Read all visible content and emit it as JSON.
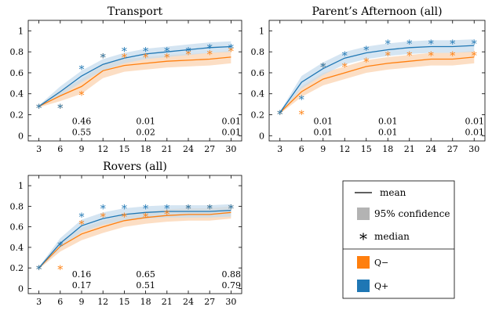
{
  "colors": {
    "q_minus": "#ff7f0e",
    "q_plus": "#1f77b4",
    "q_minus_band": "#fbd3b0",
    "q_plus_band": "#c7dced",
    "confidence_swatch": "#b3b3b3",
    "axis": "#000000"
  },
  "legend": {
    "mean": "mean",
    "confidence": "95% confidence",
    "median": "median",
    "q_minus": "Q−",
    "q_plus": "Q+",
    "median_glyph": "*"
  },
  "chart_data": [
    {
      "type": "line",
      "title": "Transport",
      "x": [
        3,
        6,
        9,
        12,
        15,
        18,
        21,
        24,
        27,
        30
      ],
      "ylim": [
        0,
        1.1
      ],
      "yticks": [
        0,
        0.2,
        0.4,
        0.6,
        0.8,
        1
      ],
      "grid": false,
      "series": [
        {
          "name": "Q−",
          "mean": [
            0.28,
            0.38,
            0.47,
            0.62,
            0.67,
            0.69,
            0.71,
            0.72,
            0.73,
            0.75
          ],
          "ci_low": [
            0.27,
            0.33,
            0.4,
            0.55,
            0.61,
            0.63,
            0.65,
            0.66,
            0.67,
            0.69
          ],
          "ci_high": [
            0.29,
            0.43,
            0.54,
            0.68,
            0.73,
            0.75,
            0.77,
            0.78,
            0.79,
            0.81
          ],
          "median": [
            0.28,
            0.28,
            0.4,
            0.76,
            0.76,
            0.76,
            0.76,
            0.79,
            0.79,
            0.82
          ]
        },
        {
          "name": "Q+",
          "mean": [
            0.28,
            0.42,
            0.57,
            0.68,
            0.74,
            0.78,
            0.8,
            0.82,
            0.84,
            0.85
          ],
          "ci_low": [
            0.27,
            0.38,
            0.51,
            0.62,
            0.69,
            0.73,
            0.75,
            0.77,
            0.79,
            0.8
          ],
          "ci_high": [
            0.29,
            0.47,
            0.62,
            0.73,
            0.79,
            0.83,
            0.85,
            0.87,
            0.89,
            0.9
          ],
          "median": [
            0.28,
            0.28,
            0.65,
            0.76,
            0.82,
            0.82,
            0.82,
            0.82,
            0.85,
            0.85
          ]
        }
      ],
      "annotations": [
        {
          "x": 9,
          "top": "0.46",
          "bottom": "0.55"
        },
        {
          "x": 18,
          "top": "0.01",
          "bottom": "0.02"
        },
        {
          "x": 30,
          "top": "0.01",
          "bottom": "0.01"
        }
      ]
    },
    {
      "type": "line",
      "title": "Parent’s Afternoon (all)",
      "x": [
        3,
        6,
        9,
        12,
        15,
        18,
        21,
        24,
        27,
        30
      ],
      "ylim": [
        0,
        1.1
      ],
      "yticks": [
        0,
        0.2,
        0.4,
        0.6,
        0.8,
        1
      ],
      "grid": false,
      "series": [
        {
          "name": "Q−",
          "mean": [
            0.22,
            0.42,
            0.54,
            0.6,
            0.66,
            0.69,
            0.71,
            0.73,
            0.73,
            0.75
          ],
          "ci_low": [
            0.21,
            0.37,
            0.48,
            0.54,
            0.6,
            0.63,
            0.65,
            0.67,
            0.67,
            0.69
          ],
          "ci_high": [
            0.23,
            0.47,
            0.6,
            0.66,
            0.72,
            0.75,
            0.77,
            0.79,
            0.79,
            0.81
          ],
          "median": [
            0.22,
            0.22,
            0.67,
            0.67,
            0.72,
            0.78,
            0.78,
            0.78,
            0.78,
            0.78
          ]
        },
        {
          "name": "Q+",
          "mean": [
            0.22,
            0.51,
            0.64,
            0.74,
            0.79,
            0.82,
            0.84,
            0.85,
            0.85,
            0.86
          ],
          "ci_low": [
            0.21,
            0.45,
            0.58,
            0.68,
            0.73,
            0.76,
            0.78,
            0.79,
            0.79,
            0.8
          ],
          "ci_high": [
            0.23,
            0.57,
            0.7,
            0.8,
            0.85,
            0.88,
            0.9,
            0.91,
            0.91,
            0.92
          ],
          "median": [
            0.22,
            0.36,
            0.67,
            0.78,
            0.83,
            0.89,
            0.89,
            0.89,
            0.89,
            0.89
          ]
        }
      ],
      "annotations": [
        {
          "x": 9,
          "top": "0.01",
          "bottom": "0.01"
        },
        {
          "x": 18,
          "top": "0.01",
          "bottom": "0.01"
        },
        {
          "x": 30,
          "top": "0.01",
          "bottom": "0.01"
        }
      ]
    },
    {
      "type": "line",
      "title": "Rovers (all)",
      "x": [
        3,
        6,
        9,
        12,
        15,
        18,
        21,
        24,
        27,
        30
      ],
      "ylim": [
        0,
        1.1
      ],
      "yticks": [
        0,
        0.2,
        0.4,
        0.6,
        0.8,
        1
      ],
      "grid": false,
      "series": [
        {
          "name": "Q−",
          "mean": [
            0.2,
            0.41,
            0.53,
            0.6,
            0.66,
            0.69,
            0.71,
            0.72,
            0.72,
            0.74
          ],
          "ci_low": [
            0.19,
            0.36,
            0.47,
            0.54,
            0.6,
            0.63,
            0.65,
            0.66,
            0.66,
            0.68
          ],
          "ci_high": [
            0.21,
            0.46,
            0.59,
            0.66,
            0.72,
            0.75,
            0.77,
            0.78,
            0.78,
            0.8
          ],
          "median": [
            0.2,
            0.2,
            0.64,
            0.71,
            0.71,
            0.71,
            0.74,
            0.79,
            0.79,
            0.79
          ]
        },
        {
          "name": "Q+",
          "mean": [
            0.2,
            0.44,
            0.61,
            0.68,
            0.72,
            0.74,
            0.75,
            0.75,
            0.75,
            0.76
          ],
          "ci_low": [
            0.19,
            0.39,
            0.55,
            0.62,
            0.66,
            0.68,
            0.69,
            0.69,
            0.69,
            0.7
          ],
          "ci_high": [
            0.21,
            0.49,
            0.67,
            0.74,
            0.78,
            0.8,
            0.81,
            0.81,
            0.81,
            0.82
          ],
          "median": [
            0.2,
            0.43,
            0.71,
            0.79,
            0.79,
            0.79,
            0.79,
            0.79,
            0.79,
            0.79
          ]
        }
      ],
      "annotations": [
        {
          "x": 9,
          "top": "0.16",
          "bottom": "0.17"
        },
        {
          "x": 18,
          "top": "0.65",
          "bottom": "0.51"
        },
        {
          "x": 30,
          "top": "0.88",
          "bottom": "0.79"
        }
      ]
    }
  ]
}
